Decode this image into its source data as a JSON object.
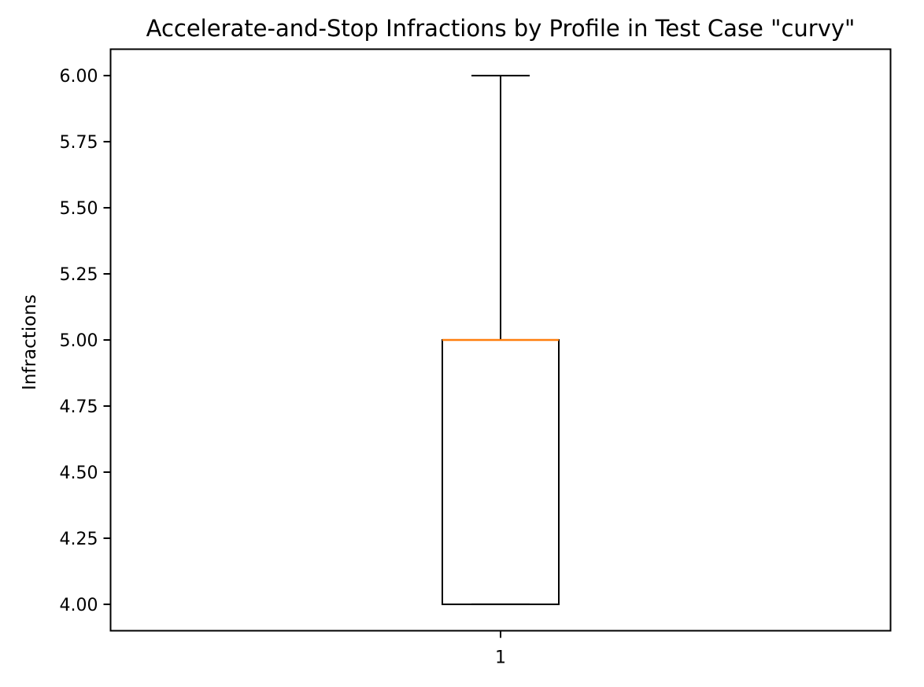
{
  "chart_data": {
    "type": "box",
    "title": "Accelerate-and-Stop Infractions by Profile in Test Case \"curvy\"",
    "xlabel": "",
    "ylabel": "Infractions",
    "categories": [
      "1"
    ],
    "boxes": [
      {
        "category": "1",
        "whisker_low": 4.0,
        "q1": 4.0,
        "median": 5.0,
        "q3": 5.0,
        "whisker_high": 6.0
      }
    ],
    "ylim": [
      3.9,
      6.1
    ],
    "yticks": [
      4.0,
      4.25,
      4.5,
      4.75,
      5.0,
      5.25,
      5.5,
      5.75,
      6.0
    ],
    "ytick_labels": [
      "4.00",
      "4.25",
      "4.50",
      "4.75",
      "5.00",
      "5.25",
      "5.50",
      "5.75",
      "6.00"
    ],
    "grid": false,
    "legend": "none",
    "colors": {
      "box": "#000000",
      "median": "#ff7f0e",
      "whisker": "#000000",
      "background": "#ffffff"
    }
  }
}
